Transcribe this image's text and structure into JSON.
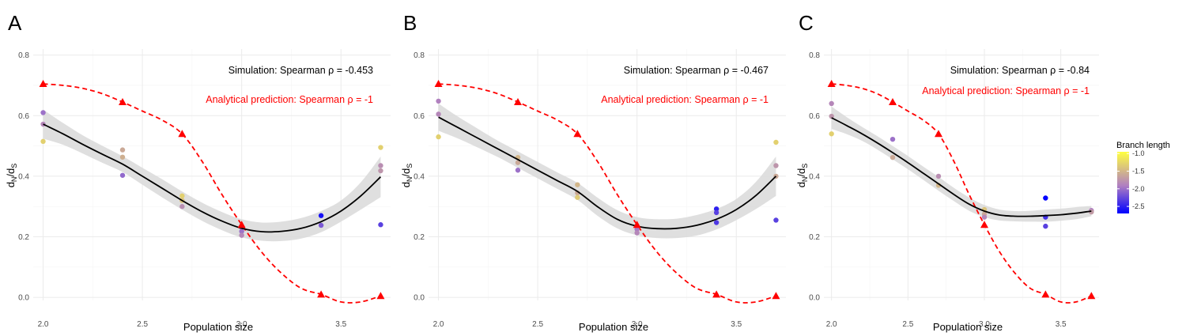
{
  "colors": {
    "prediction": "#ff0000",
    "fit_line": "#000000",
    "ribbon": "#d9d9d9",
    "grid_major": "#ebebeb",
    "grid_minor": "#f5f5f5",
    "scale_low": "#0000ff",
    "scale_mid": "#b07fc1",
    "scale_high": "#ffff40"
  },
  "legend": {
    "title": "Branch length",
    "ticks": [
      "-1.0",
      "-1.5",
      "-2.0",
      "-2.5"
    ],
    "tick_values": [
      -1.0,
      -1.5,
      -2.0,
      -2.5
    ],
    "range": [
      -2.7,
      -0.95
    ]
  },
  "chart_data": [
    {
      "type": "scatter",
      "panel": "A",
      "xlabel": "Population size",
      "ylabel_main": "d",
      "ylabel_sub1": "N",
      "ylabel_sep": "/d",
      "ylabel_sub2": "S",
      "xlim": [
        1.95,
        3.75
      ],
      "ylim": [
        -0.01,
        0.82
      ],
      "x_ticks": [
        2.0,
        2.5,
        3.0,
        3.5
      ],
      "x_tick_labels": [
        "2.0",
        "2.5",
        "3.0",
        "3.5"
      ],
      "y_ticks": [
        0.0,
        0.2,
        0.4,
        0.6,
        0.8
      ],
      "y_tick_labels": [
        "0.0",
        "0.2",
        "0.4",
        "0.6",
        "0.8"
      ],
      "annotation_simulation": "Simulation: Spearman ρ = -0.453",
      "annotation_prediction": "Analytical prediction: Spearman ρ = -1",
      "points": [
        {
          "x": 2.0,
          "y": 0.61,
          "c": -2.0
        },
        {
          "x": 2.0,
          "y": 0.572,
          "c": -1.85
        },
        {
          "x": 2.0,
          "y": 0.515,
          "c": -1.3
        },
        {
          "x": 2.4,
          "y": 0.487,
          "c": -1.6
        },
        {
          "x": 2.4,
          "y": 0.463,
          "c": -1.55
        },
        {
          "x": 2.4,
          "y": 0.403,
          "c": -2.05
        },
        {
          "x": 2.7,
          "y": 0.335,
          "c": -1.3
        },
        {
          "x": 2.7,
          "y": 0.32,
          "c": -1.4
        },
        {
          "x": 2.7,
          "y": 0.3,
          "c": -1.8
        },
        {
          "x": 3.0,
          "y": 0.23,
          "c": -1.9
        },
        {
          "x": 3.0,
          "y": 0.218,
          "c": -2.0
        },
        {
          "x": 3.0,
          "y": 0.205,
          "c": -1.85
        },
        {
          "x": 3.4,
          "y": 0.27,
          "c": -2.6
        },
        {
          "x": 3.4,
          "y": 0.238,
          "c": -2.15
        },
        {
          "x": 3.7,
          "y": 0.495,
          "c": -1.3
        },
        {
          "x": 3.7,
          "y": 0.435,
          "c": -1.8
        },
        {
          "x": 3.7,
          "y": 0.418,
          "c": -1.75
        },
        {
          "x": 3.7,
          "y": 0.24,
          "c": -2.3
        }
      ],
      "fit_curve": {
        "x": [
          2.0,
          2.1,
          2.2,
          2.3,
          2.4,
          2.5,
          2.6,
          2.7,
          2.8,
          2.9,
          3.0,
          3.1,
          3.2,
          3.3,
          3.4,
          3.5,
          3.6,
          3.7
        ],
        "y": [
          0.572,
          0.54,
          0.505,
          0.472,
          0.44,
          0.4,
          0.36,
          0.32,
          0.283,
          0.252,
          0.228,
          0.217,
          0.218,
          0.228,
          0.25,
          0.285,
          0.335,
          0.398
        ],
        "upper": [
          0.62,
          0.576,
          0.535,
          0.5,
          0.466,
          0.428,
          0.39,
          0.35,
          0.313,
          0.282,
          0.258,
          0.247,
          0.25,
          0.262,
          0.285,
          0.32,
          0.38,
          0.465
        ],
        "lower": [
          0.524,
          0.504,
          0.475,
          0.444,
          0.414,
          0.372,
          0.33,
          0.29,
          0.253,
          0.222,
          0.198,
          0.187,
          0.186,
          0.194,
          0.215,
          0.25,
          0.29,
          0.331
        ]
      },
      "prediction": {
        "x": [
          2.0,
          2.4,
          2.7,
          3.0,
          3.4,
          3.7
        ],
        "y": [
          0.705,
          0.645,
          0.54,
          0.24,
          0.01,
          0.005
        ],
        "curve_x": [
          2.0,
          2.1,
          2.2,
          2.3,
          2.4,
          2.5,
          2.6,
          2.7,
          2.8,
          2.9,
          3.0,
          3.1,
          3.2,
          3.3,
          3.4,
          3.5,
          3.6,
          3.7
        ],
        "curve_y": [
          0.705,
          0.7,
          0.69,
          0.672,
          0.645,
          0.615,
          0.585,
          0.54,
          0.45,
          0.34,
          0.24,
          0.15,
          0.08,
          0.03,
          0.01,
          -0.015,
          -0.015,
          0.005
        ]
      }
    },
    {
      "type": "scatter",
      "panel": "B",
      "xlabel": "Population size",
      "ylabel_main": "d",
      "ylabel_sub1": "N",
      "ylabel_sep": "/d",
      "ylabel_sub2": "S",
      "xlim": [
        1.95,
        3.75
      ],
      "ylim": [
        -0.01,
        0.82
      ],
      "x_ticks": [
        2.0,
        2.5,
        3.0,
        3.5
      ],
      "x_tick_labels": [
        "2.0",
        "2.5",
        "3.0",
        "3.5"
      ],
      "y_ticks": [
        0.0,
        0.2,
        0.4,
        0.6,
        0.8
      ],
      "y_tick_labels": [
        "0.0",
        "0.2",
        "0.4",
        "0.6",
        "0.8"
      ],
      "annotation_simulation": "Simulation: Spearman ρ = -0.467",
      "annotation_prediction": "Analytical prediction: Spearman ρ = -1",
      "points": [
        {
          "x": 2.0,
          "y": 0.648,
          "c": -1.9
        },
        {
          "x": 2.0,
          "y": 0.605,
          "c": -1.85
        },
        {
          "x": 2.0,
          "y": 0.53,
          "c": -1.3
        },
        {
          "x": 2.4,
          "y": 0.462,
          "c": -1.5
        },
        {
          "x": 2.4,
          "y": 0.445,
          "c": -1.6
        },
        {
          "x": 2.4,
          "y": 0.42,
          "c": -2.0
        },
        {
          "x": 2.7,
          "y": 0.372,
          "c": -1.5
        },
        {
          "x": 2.7,
          "y": 0.345,
          "c": -1.6
        },
        {
          "x": 2.7,
          "y": 0.33,
          "c": -1.35
        },
        {
          "x": 3.0,
          "y": 0.235,
          "c": -1.9
        },
        {
          "x": 3.0,
          "y": 0.225,
          "c": -1.95
        },
        {
          "x": 3.0,
          "y": 0.213,
          "c": -1.85
        },
        {
          "x": 3.4,
          "y": 0.292,
          "c": -2.5
        },
        {
          "x": 3.4,
          "y": 0.28,
          "c": -2.3
        },
        {
          "x": 3.4,
          "y": 0.247,
          "c": -2.35
        },
        {
          "x": 3.7,
          "y": 0.512,
          "c": -1.3
        },
        {
          "x": 3.7,
          "y": 0.435,
          "c": -1.75
        },
        {
          "x": 3.7,
          "y": 0.4,
          "c": -1.6
        },
        {
          "x": 3.7,
          "y": 0.255,
          "c": -2.3
        }
      ],
      "fit_curve": {
        "x": [
          2.0,
          2.1,
          2.2,
          2.3,
          2.4,
          2.5,
          2.6,
          2.7,
          2.8,
          2.9,
          3.0,
          3.1,
          3.2,
          3.3,
          3.4,
          3.5,
          3.6,
          3.7
        ],
        "y": [
          0.595,
          0.56,
          0.525,
          0.49,
          0.455,
          0.42,
          0.385,
          0.35,
          0.3,
          0.258,
          0.235,
          0.227,
          0.228,
          0.238,
          0.258,
          0.29,
          0.337,
          0.4
        ],
        "upper": [
          0.64,
          0.596,
          0.556,
          0.517,
          0.482,
          0.447,
          0.412,
          0.378,
          0.33,
          0.288,
          0.265,
          0.258,
          0.26,
          0.272,
          0.292,
          0.325,
          0.382,
          0.465
        ],
        "lower": [
          0.55,
          0.524,
          0.494,
          0.463,
          0.428,
          0.393,
          0.358,
          0.322,
          0.27,
          0.228,
          0.205,
          0.196,
          0.196,
          0.204,
          0.224,
          0.255,
          0.292,
          0.335
        ]
      },
      "prediction": {
        "x": [
          2.0,
          2.4,
          2.7,
          3.0,
          3.4,
          3.7
        ],
        "y": [
          0.705,
          0.645,
          0.54,
          0.24,
          0.01,
          0.005
        ],
        "curve_x": [
          2.0,
          2.1,
          2.2,
          2.3,
          2.4,
          2.5,
          2.6,
          2.7,
          2.8,
          2.9,
          3.0,
          3.1,
          3.2,
          3.3,
          3.4,
          3.5,
          3.6,
          3.7
        ],
        "curve_y": [
          0.705,
          0.7,
          0.69,
          0.672,
          0.645,
          0.615,
          0.585,
          0.54,
          0.45,
          0.34,
          0.24,
          0.15,
          0.08,
          0.03,
          0.01,
          -0.015,
          -0.015,
          0.005
        ]
      }
    },
    {
      "type": "scatter",
      "panel": "C",
      "xlabel": "Population size",
      "ylabel_main": "d",
      "ylabel_sub1": "N",
      "ylabel_sep": "/d",
      "ylabel_sub2": "S",
      "xlim": [
        1.95,
        3.75
      ],
      "ylim": [
        -0.01,
        0.82
      ],
      "x_ticks": [
        2.0,
        2.5,
        3.0,
        3.5
      ],
      "x_tick_labels": [
        "2.0",
        "2.5",
        "3.0",
        "3.5"
      ],
      "y_ticks": [
        0.0,
        0.2,
        0.4,
        0.6,
        0.8
      ],
      "y_tick_labels": [
        "0.0",
        "0.2",
        "0.4",
        "0.6",
        "0.8"
      ],
      "annotation_simulation": "Simulation: Spearman ρ = -0.84",
      "annotation_prediction": "Analytical prediction: Spearman ρ = -1",
      "points": [
        {
          "x": 2.0,
          "y": 0.64,
          "c": -1.85
        },
        {
          "x": 2.0,
          "y": 0.598,
          "c": -1.75
        },
        {
          "x": 2.0,
          "y": 0.54,
          "c": -1.3
        },
        {
          "x": 2.4,
          "y": 0.522,
          "c": -2.0
        },
        {
          "x": 2.4,
          "y": 0.462,
          "c": -1.6
        },
        {
          "x": 2.7,
          "y": 0.4,
          "c": -1.8
        },
        {
          "x": 2.7,
          "y": 0.37,
          "c": -1.5
        },
        {
          "x": 3.0,
          "y": 0.29,
          "c": -1.4
        },
        {
          "x": 3.0,
          "y": 0.275,
          "c": -1.6
        },
        {
          "x": 3.0,
          "y": 0.265,
          "c": -1.85
        },
        {
          "x": 3.4,
          "y": 0.328,
          "c": -2.75
        },
        {
          "x": 3.4,
          "y": 0.265,
          "c": -2.4
        },
        {
          "x": 3.4,
          "y": 0.235,
          "c": -2.3
        },
        {
          "x": 3.7,
          "y": 0.287,
          "c": -1.9
        },
        {
          "x": 3.7,
          "y": 0.282,
          "c": -1.7
        }
      ],
      "fit_curve": {
        "x": [
          2.0,
          2.1,
          2.2,
          2.3,
          2.4,
          2.5,
          2.6,
          2.7,
          2.8,
          2.9,
          3.0,
          3.1,
          3.2,
          3.3,
          3.4,
          3.5,
          3.6,
          3.7
        ],
        "y": [
          0.593,
          0.567,
          0.54,
          0.51,
          0.478,
          0.445,
          0.41,
          0.375,
          0.34,
          0.308,
          0.285,
          0.272,
          0.268,
          0.268,
          0.27,
          0.273,
          0.278,
          0.285
        ],
        "upper": [
          0.63,
          0.595,
          0.563,
          0.532,
          0.5,
          0.467,
          0.432,
          0.398,
          0.362,
          0.33,
          0.305,
          0.29,
          0.285,
          0.286,
          0.29,
          0.293,
          0.298,
          0.302
        ],
        "lower": [
          0.556,
          0.539,
          0.517,
          0.488,
          0.456,
          0.423,
          0.388,
          0.352,
          0.318,
          0.286,
          0.265,
          0.254,
          0.251,
          0.25,
          0.25,
          0.253,
          0.258,
          0.268
        ]
      },
      "prediction": {
        "x": [
          2.0,
          2.4,
          2.7,
          3.0,
          3.4,
          3.7
        ],
        "y": [
          0.705,
          0.645,
          0.54,
          0.24,
          0.01,
          0.005
        ],
        "curve_x": [
          2.0,
          2.1,
          2.2,
          2.3,
          2.4,
          2.5,
          2.6,
          2.7,
          2.8,
          2.9,
          3.0,
          3.1,
          3.2,
          3.3,
          3.4,
          3.5,
          3.6,
          3.7
        ],
        "curve_y": [
          0.705,
          0.7,
          0.69,
          0.672,
          0.645,
          0.615,
          0.585,
          0.54,
          0.45,
          0.34,
          0.24,
          0.15,
          0.08,
          0.03,
          0.01,
          -0.015,
          -0.015,
          0.005
        ]
      }
    }
  ]
}
